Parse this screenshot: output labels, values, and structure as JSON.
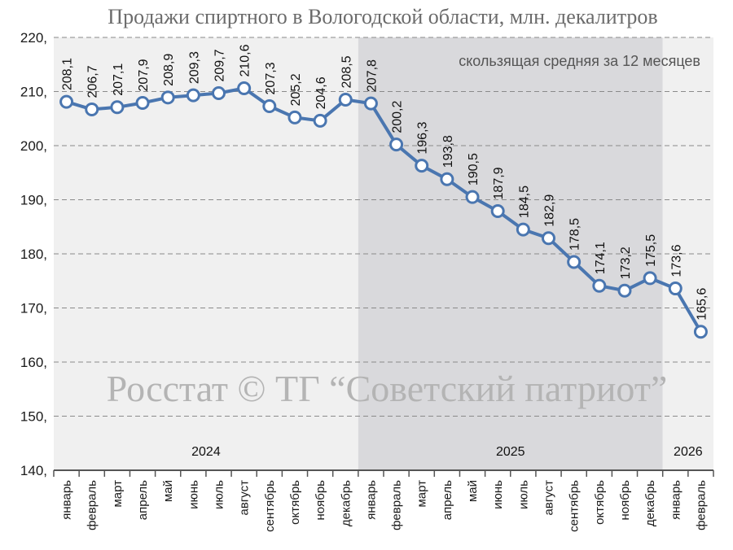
{
  "chart_data": {
    "type": "line",
    "title": "Продажи спиртного в Вологодской области, млн. декалитров",
    "annotation": "скользящая средняя за 12 месяцев",
    "watermark": "Росстат © ТГ “Советский патриот”",
    "ylim": [
      140,
      220
    ],
    "yticks": [
      {
        "value": 140,
        "label": "140,"
      },
      {
        "value": 150,
        "label": "150,"
      },
      {
        "value": 160,
        "label": "160,"
      },
      {
        "value": 170,
        "label": "170,"
      },
      {
        "value": 180,
        "label": "180,"
      },
      {
        "value": 190,
        "label": "190,"
      },
      {
        "value": 200,
        "label": "200,"
      },
      {
        "value": 210,
        "label": "210,"
      },
      {
        "value": 220,
        "label": "220,"
      }
    ],
    "grid": true,
    "categories": [
      "январь",
      "февраль",
      "март",
      "апрель",
      "май",
      "июнь",
      "июль",
      "август",
      "сентябрь",
      "октябрь",
      "ноябрь",
      "декабрь",
      "январь",
      "февраль",
      "март",
      "апрель",
      "май",
      "июнь",
      "июль",
      "август",
      "сентябрь",
      "октябрь",
      "ноябрь",
      "декабрь",
      "январь",
      "февраль"
    ],
    "years": [
      {
        "label": "2024",
        "start": 0,
        "end": 11,
        "band": "#f0f0f0"
      },
      {
        "label": "2025",
        "start": 12,
        "end": 23,
        "band": "#d9d9dc"
      },
      {
        "label": "2026",
        "start": 24,
        "end": 25,
        "band": "#f0f0f0"
      }
    ],
    "series": [
      {
        "values": [
          208.1,
          206.7,
          207.1,
          207.9,
          208.9,
          209.3,
          209.7,
          210.6,
          207.3,
          205.2,
          204.6,
          208.5,
          207.8,
          200.2,
          196.3,
          193.8,
          190.5,
          187.9,
          184.5,
          182.9,
          178.5,
          174.1,
          173.2,
          175.5,
          173.6,
          165.6
        ],
        "labels": [
          "208,1",
          "206,7",
          "207,1",
          "207,9",
          "208,9",
          "209,3",
          "209,7",
          "210,6",
          "207,3",
          "205,2",
          "204,6",
          "208,5",
          "207,8",
          "200,2",
          "196,3",
          "193,8",
          "190,5",
          "187,9",
          "184,5",
          "182,9",
          "178,5",
          "174,1",
          "173,2",
          "175,5",
          "173,6",
          "165,6"
        ],
        "color": "#4a76b0"
      }
    ]
  }
}
